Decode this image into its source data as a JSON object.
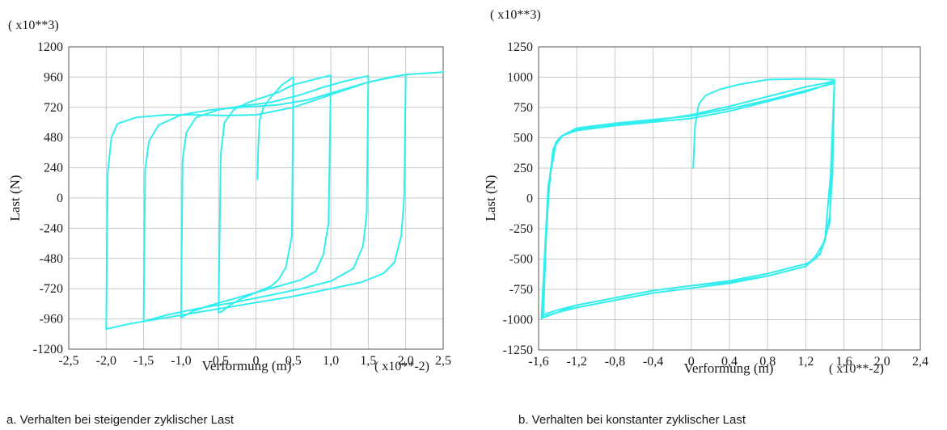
{
  "chart_data": [
    {
      "type": "line",
      "caption": "a. Verhalten bei steigender zyklischer Last",
      "xlabel": "Verformung (m)",
      "ylabel": "Last (N)",
      "x_multiplier": "( x10**-2)",
      "y_multiplier": "( x10**3)",
      "xlim": [
        -2.5,
        2.5
      ],
      "ylim": [
        -1200,
        1200
      ],
      "x_ticks": [
        -2.5,
        -2.0,
        -1.5,
        -1.0,
        -0.5,
        0,
        0.5,
        1.0,
        1.5,
        2.0,
        2.5
      ],
      "x_tick_labels": [
        "-2,5",
        "-2,0",
        "-1,5",
        "-1,0",
        "-0,5",
        "0",
        "0,5",
        "1,0",
        "1,5",
        "2,0",
        "2,5"
      ],
      "y_ticks": [
        -1200,
        -960,
        -720,
        -480,
        -240,
        0,
        240,
        480,
        720,
        960,
        1200
      ],
      "y_tick_labels": [
        "-1200",
        "-960",
        "-720",
        "-480",
        "-240",
        "0",
        "240",
        "480",
        "720",
        "960",
        "1200"
      ],
      "grid": true,
      "color": "#33eeee",
      "series": [
        {
          "x": [
            0.02,
            0.03,
            0.05,
            0.1,
            0.2,
            0.35,
            0.5,
            0.5,
            0.48,
            0.4,
            0.3,
            0.2,
            0.0,
            -0.2,
            -0.35,
            -0.45,
            -0.5,
            -0.5,
            -0.47,
            -0.42,
            -0.3,
            -0.1,
            0.1,
            0.3,
            0.5,
            1.0,
            1.0,
            0.97,
            0.9,
            0.8,
            0.6,
            0.3,
            0.0,
            -0.3,
            -0.6,
            -0.85,
            -1.0,
            -1.0,
            -0.98,
            -0.93,
            -0.8,
            -0.5,
            -0.2,
            0.2,
            0.6,
            0.9,
            1.2,
            1.5,
            1.5,
            1.48,
            1.43,
            1.3,
            1.0,
            0.6,
            0.2,
            -0.3,
            -0.8,
            -1.2,
            -1.5,
            -1.5,
            -1.48,
            -1.43,
            -1.3,
            -1.0,
            -0.6,
            -0.2,
            0.3,
            0.7,
            1.1,
            1.5,
            1.8,
            2.0,
            2.0,
            1.98,
            1.94,
            1.85,
            1.7,
            1.4,
            1.0,
            0.5,
            0.0,
            -0.5,
            -1.0,
            -1.4,
            -1.7,
            -2.0,
            -2.0,
            -1.98,
            -1.93,
            -1.85,
            -1.6,
            -1.2,
            -0.8,
            -0.4,
            0.0,
            0.5,
            1.0,
            1.5,
            2.0,
            2.5
          ],
          "y": [
            150,
            400,
            620,
            720,
            800,
            900,
            960,
            960,
            -300,
            -550,
            -650,
            -700,
            -750,
            -800,
            -850,
            -900,
            -910,
            -910,
            350,
            600,
            700,
            760,
            800,
            840,
            900,
            975,
            975,
            -200,
            -450,
            -580,
            -650,
            -700,
            -750,
            -800,
            -850,
            -900,
            -950,
            -950,
            300,
            520,
            640,
            700,
            730,
            760,
            820,
            880,
            930,
            970,
            970,
            -120,
            -380,
            -560,
            -660,
            -720,
            -770,
            -830,
            -880,
            -930,
            -980,
            -980,
            220,
            450,
            580,
            660,
            700,
            720,
            740,
            780,
            850,
            920,
            960,
            980,
            980,
            0,
            -300,
            -510,
            -600,
            -670,
            -720,
            -780,
            -830,
            -880,
            -930,
            -970,
            -1000,
            -1040,
            -1040,
            200,
            480,
            590,
            640,
            660,
            660,
            655,
            660,
            720,
            820,
            920,
            980,
            1000
          ]
        }
      ]
    },
    {
      "type": "line",
      "caption": "b. Verhalten bei konstanter zyklischer Last",
      "xlabel": "Verformung (m)",
      "ylabel": "Last (N)",
      "x_multiplier": "( x10**-2)",
      "y_multiplier": "( x10**3)",
      "xlim": [
        -1.6,
        2.4
      ],
      "ylim": [
        -1250,
        1250
      ],
      "x_ticks": [
        -1.6,
        -1.2,
        -0.8,
        -0.4,
        0,
        0.4,
        0.8,
        1.2,
        1.6,
        2.0,
        2.4
      ],
      "x_tick_labels": [
        "-1,6",
        "-1,2",
        "-0,8",
        "-0,4",
        "0",
        "0,4",
        "0,8",
        "1,2",
        "1,6",
        "2,0",
        "2,4"
      ],
      "y_ticks": [
        -1250,
        -1000,
        -750,
        -500,
        -250,
        0,
        250,
        500,
        750,
        1000,
        1250
      ],
      "y_tick_labels": [
        "-1250",
        "-1000",
        "-750",
        "-500",
        "-250",
        "0",
        "250",
        "500",
        "750",
        "1000",
        "1250"
      ],
      "grid": true,
      "color": "#33eeee",
      "series": [
        {
          "x": [
            0.02,
            0.04,
            0.08,
            0.15,
            0.3,
            0.5,
            0.8,
            1.1,
            1.3,
            1.5,
            1.5,
            1.48,
            1.45,
            1.4,
            1.35,
            1.3,
            1.2,
            0.8,
            0.4,
            0.0,
            -0.4,
            -0.8,
            -1.2,
            -1.4,
            -1.55,
            -1.55,
            -1.52,
            -1.48,
            -1.45,
            -1.42,
            -1.38,
            -1.3,
            -1.2,
            -0.8,
            -0.4,
            0.0,
            0.4,
            0.8,
            1.2,
            1.4,
            1.5,
            1.5,
            1.46,
            1.4,
            1.3,
            1.2,
            0.8,
            0.4,
            0.0,
            -0.4,
            -0.8,
            -1.2,
            -1.4,
            -1.56,
            -1.56,
            -1.5,
            -1.45,
            -1.4,
            -1.35,
            -1.2,
            -0.8,
            -0.4,
            0.0,
            0.4,
            0.8,
            1.2,
            1.5,
            1.5,
            1.45,
            1.35,
            1.2,
            0.8,
            0.4,
            0.0,
            -0.4,
            -0.8,
            -1.2,
            -1.57,
            -1.57,
            -1.5,
            -1.42,
            -1.35,
            -1.2,
            -0.8,
            -0.4,
            0.0,
            0.4,
            0.8,
            1.2,
            1.5
          ],
          "y": [
            250,
            600,
            780,
            850,
            900,
            940,
            980,
            985,
            985,
            980,
            980,
            200,
            -150,
            -350,
            -450,
            -500,
            -540,
            -620,
            -680,
            -720,
            -760,
            -820,
            -880,
            -920,
            -960,
            -960,
            -300,
            200,
            380,
            460,
            500,
            540,
            570,
            610,
            640,
            690,
            760,
            840,
            920,
            950,
            970,
            970,
            200,
            -350,
            -480,
            -560,
            -640,
            -700,
            -740,
            -780,
            -840,
            -900,
            -940,
            -980,
            -980,
            0,
            400,
            480,
            520,
            560,
            600,
            630,
            660,
            720,
            800,
            880,
            960,
            960,
            -200,
            -460,
            -560,
            -640,
            -690,
            -720,
            -760,
            -820,
            -880,
            -990,
            -990,
            100,
            440,
            520,
            580,
            620,
            650,
            680,
            740,
            810,
            890,
            950
          ]
        }
      ]
    }
  ]
}
